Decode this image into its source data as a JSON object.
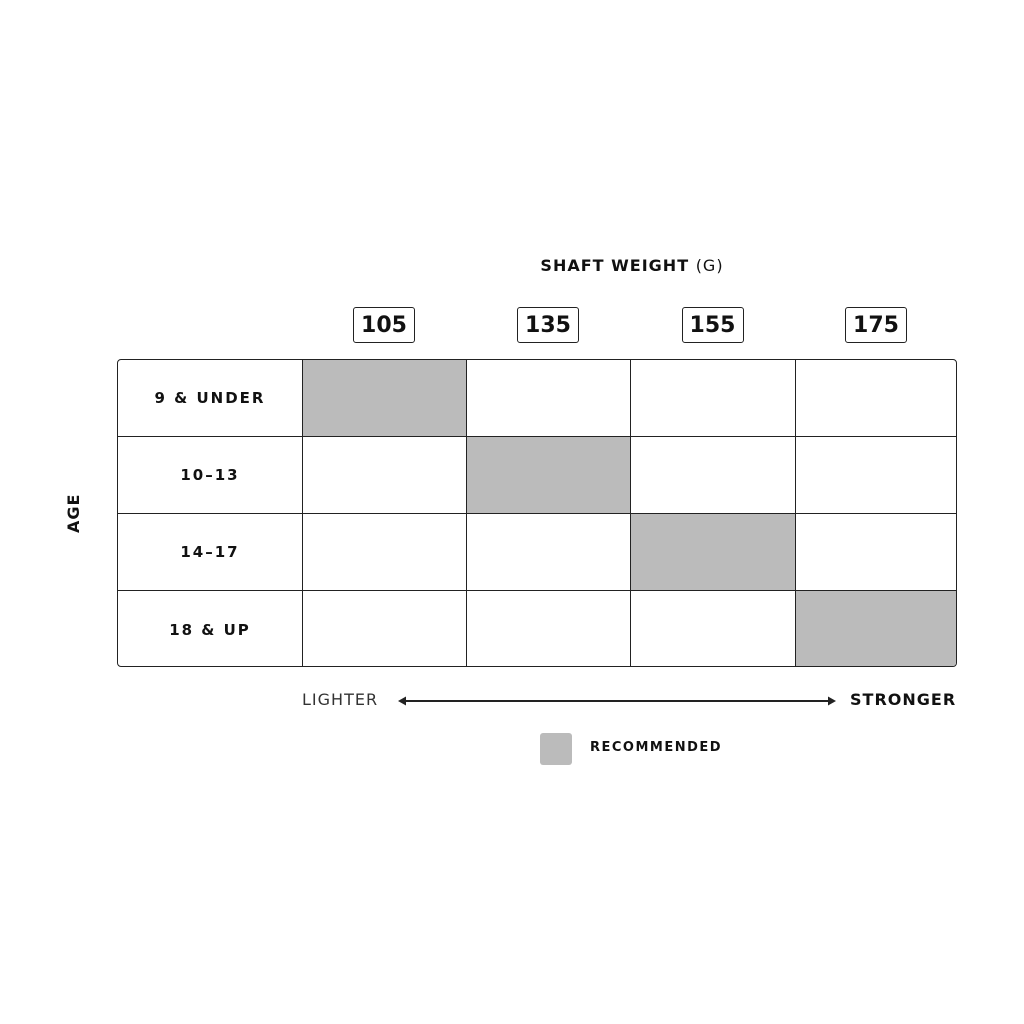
{
  "chart_data": {
    "type": "table",
    "title": "SHAFT WEIGHT",
    "title_unit": "(G)",
    "columns": [
      "105",
      "135",
      "155",
      "175"
    ],
    "row_axis_label": "AGE",
    "rows": [
      "9 & UNDER",
      "10–13",
      "14–17",
      "18 & UP"
    ],
    "recommended": [
      {
        "row": "9 & UNDER",
        "column": "105"
      },
      {
        "row": "10–13",
        "column": "135"
      },
      {
        "row": "14–17",
        "column": "155"
      },
      {
        "row": "18 & UP",
        "column": "175"
      }
    ],
    "scale": {
      "left": "LIGHTER",
      "right": "STRONGER"
    },
    "legend": {
      "label": "RECOMMENDED",
      "color": "#bbbbbb"
    }
  }
}
